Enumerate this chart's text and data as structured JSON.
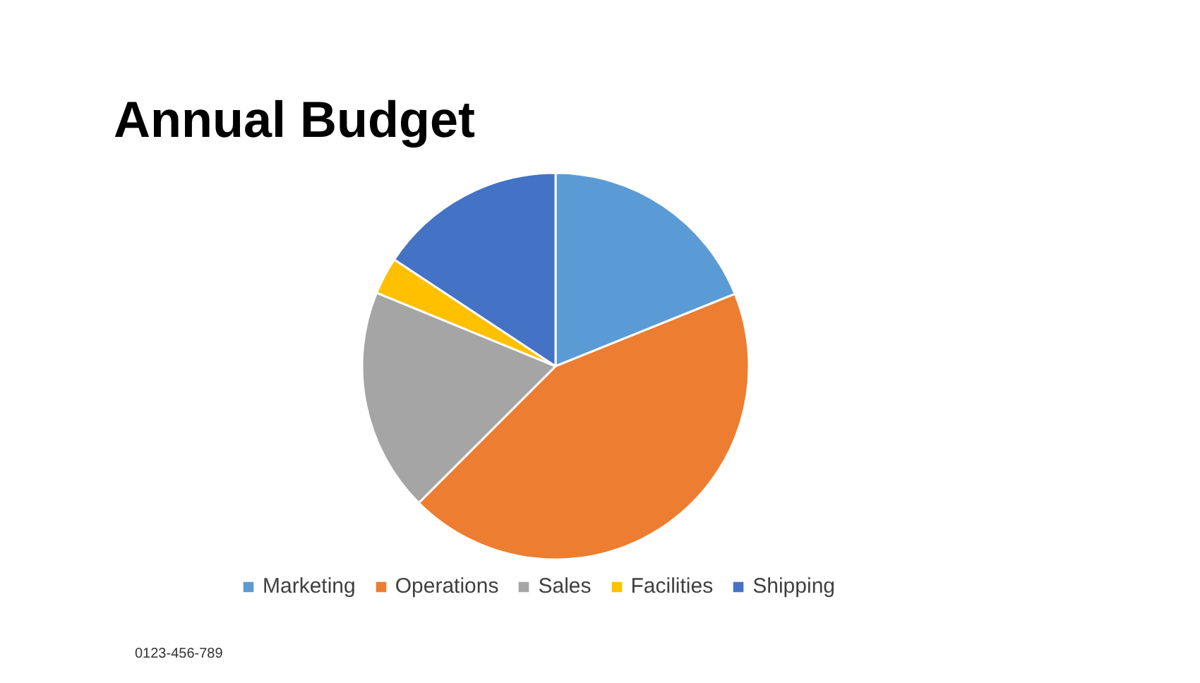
{
  "chart_data": {
    "type": "pie",
    "title": "Annual Budget",
    "categories": [
      "Marketing",
      "Operations",
      "Sales",
      "Facilities",
      "Shipping"
    ],
    "values": [
      18.9,
      43.6,
      18.7,
      3.1,
      15.7
    ],
    "colors": [
      "#5b9bd5",
      "#ed7d31",
      "#a5a5a5",
      "#ffc000",
      "#4472c4"
    ],
    "legend": "bottom",
    "annotations": [
      "0123-456-789"
    ]
  }
}
